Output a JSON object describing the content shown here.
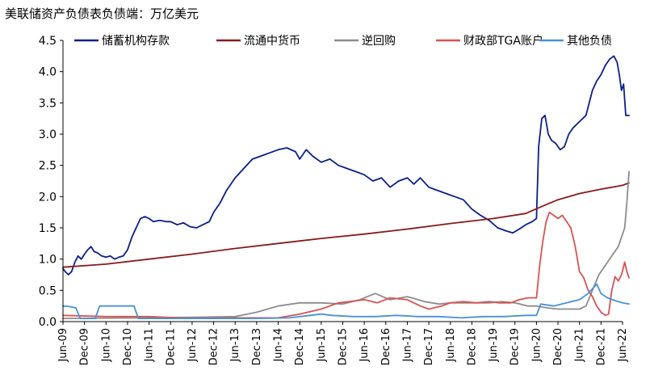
{
  "chart_data": {
    "type": "line",
    "title": "美联储资产负债表负债端：万亿美元",
    "xlabel": "",
    "ylabel": "",
    "ylim": [
      0,
      4.5
    ],
    "yticks": [
      "0.0",
      "0.5",
      "1.0",
      "1.5",
      "2.0",
      "2.5",
      "3.0",
      "3.5",
      "4.0",
      "4.5"
    ],
    "xticks": [
      "Jun-09",
      "Dec-09",
      "Jun-10",
      "Dec-10",
      "Jun-11",
      "Dec-11",
      "Jun-12",
      "Dec-12",
      "Jun-13",
      "Dec-13",
      "Jun-14",
      "Dec-14",
      "Jun-15",
      "Dec-15",
      "Jun-16",
      "Dec-16",
      "Jun-17",
      "Dec-17",
      "Jun-18",
      "Dec-18",
      "Jun-19",
      "Dec-19",
      "Jun-20",
      "Dec-20",
      "Jun-21",
      "Dec-21",
      "Jun-22"
    ],
    "xlim": [
      0,
      26
    ],
    "legend_position": "top",
    "grid": false,
    "series": [
      {
        "name": "储蓄机构存款",
        "color": "#0a1f8a",
        "points": [
          [
            0,
            0.85
          ],
          [
            0.1,
            0.8
          ],
          [
            0.25,
            0.75
          ],
          [
            0.4,
            0.8
          ],
          [
            0.55,
            0.95
          ],
          [
            0.7,
            1.05
          ],
          [
            0.85,
            1.0
          ],
          [
            1.0,
            1.08
          ],
          [
            1.15,
            1.15
          ],
          [
            1.3,
            1.2
          ],
          [
            1.45,
            1.12
          ],
          [
            1.6,
            1.1
          ],
          [
            1.8,
            1.05
          ],
          [
            2.0,
            1.03
          ],
          [
            2.2,
            1.05
          ],
          [
            2.4,
            1.0
          ],
          [
            2.6,
            1.03
          ],
          [
            2.8,
            1.05
          ],
          [
            3.0,
            1.15
          ],
          [
            3.2,
            1.35
          ],
          [
            3.4,
            1.5
          ],
          [
            3.6,
            1.65
          ],
          [
            3.8,
            1.68
          ],
          [
            4.0,
            1.65
          ],
          [
            4.2,
            1.6
          ],
          [
            4.5,
            1.62
          ],
          [
            4.8,
            1.6
          ],
          [
            5.0,
            1.6
          ],
          [
            5.3,
            1.55
          ],
          [
            5.6,
            1.58
          ],
          [
            5.9,
            1.52
          ],
          [
            6.2,
            1.5
          ],
          [
            6.5,
            1.55
          ],
          [
            6.8,
            1.6
          ],
          [
            7.0,
            1.75
          ],
          [
            7.3,
            1.9
          ],
          [
            7.6,
            2.1
          ],
          [
            8.0,
            2.3
          ],
          [
            8.4,
            2.45
          ],
          [
            8.8,
            2.6
          ],
          [
            9.2,
            2.65
          ],
          [
            9.6,
            2.7
          ],
          [
            10.0,
            2.75
          ],
          [
            10.4,
            2.78
          ],
          [
            10.8,
            2.72
          ],
          [
            11.0,
            2.6
          ],
          [
            11.3,
            2.75
          ],
          [
            11.6,
            2.65
          ],
          [
            12.0,
            2.55
          ],
          [
            12.4,
            2.6
          ],
          [
            12.8,
            2.5
          ],
          [
            13.2,
            2.45
          ],
          [
            13.6,
            2.4
          ],
          [
            14.0,
            2.35
          ],
          [
            14.4,
            2.25
          ],
          [
            14.8,
            2.3
          ],
          [
            15.2,
            2.15
          ],
          [
            15.6,
            2.25
          ],
          [
            16.0,
            2.3
          ],
          [
            16.3,
            2.2
          ],
          [
            16.6,
            2.3
          ],
          [
            17.0,
            2.15
          ],
          [
            17.4,
            2.1
          ],
          [
            17.8,
            2.05
          ],
          [
            18.2,
            2.0
          ],
          [
            18.6,
            1.95
          ],
          [
            19.0,
            1.8
          ],
          [
            19.4,
            1.7
          ],
          [
            19.8,
            1.62
          ],
          [
            20.2,
            1.5
          ],
          [
            20.6,
            1.45
          ],
          [
            20.9,
            1.42
          ],
          [
            21.2,
            1.48
          ],
          [
            21.5,
            1.55
          ],
          [
            21.8,
            1.6
          ],
          [
            22.0,
            1.65
          ],
          [
            22.1,
            2.8
          ],
          [
            22.25,
            3.25
          ],
          [
            22.4,
            3.3
          ],
          [
            22.55,
            3.0
          ],
          [
            22.7,
            2.9
          ],
          [
            22.9,
            2.85
          ],
          [
            23.1,
            2.75
          ],
          [
            23.3,
            2.8
          ],
          [
            23.5,
            3.0
          ],
          [
            23.7,
            3.1
          ],
          [
            24.0,
            3.2
          ],
          [
            24.3,
            3.3
          ],
          [
            24.6,
            3.7
          ],
          [
            24.8,
            3.85
          ],
          [
            25.0,
            3.95
          ],
          [
            25.2,
            4.1
          ],
          [
            25.4,
            4.2
          ],
          [
            25.6,
            4.25
          ],
          [
            25.75,
            4.15
          ],
          [
            25.85,
            3.95
          ],
          [
            25.95,
            3.7
          ],
          [
            26.05,
            3.8
          ],
          [
            26.15,
            3.3
          ],
          [
            26.3,
            3.3
          ]
        ]
      },
      {
        "name": "流通中货币",
        "color": "#8b1a1a",
        "points": [
          [
            0,
            0.87
          ],
          [
            2,
            0.92
          ],
          [
            4,
            1.0
          ],
          [
            6,
            1.08
          ],
          [
            8,
            1.17
          ],
          [
            10,
            1.25
          ],
          [
            12,
            1.33
          ],
          [
            14,
            1.4
          ],
          [
            16,
            1.48
          ],
          [
            18,
            1.57
          ],
          [
            20,
            1.65
          ],
          [
            21.5,
            1.73
          ],
          [
            22.3,
            1.85
          ],
          [
            23,
            1.95
          ],
          [
            24,
            2.05
          ],
          [
            25,
            2.12
          ],
          [
            26,
            2.18
          ],
          [
            26.3,
            2.22
          ]
        ]
      },
      {
        "name": "逆回购",
        "color": "#8c8c8c",
        "points": [
          [
            0,
            0.05
          ],
          [
            4,
            0.06
          ],
          [
            8,
            0.08
          ],
          [
            9.0,
            0.15
          ],
          [
            10.0,
            0.25
          ],
          [
            11.0,
            0.3
          ],
          [
            12.0,
            0.3
          ],
          [
            13.0,
            0.28
          ],
          [
            13.8,
            0.35
          ],
          [
            14.5,
            0.45
          ],
          [
            15.2,
            0.35
          ],
          [
            16.0,
            0.4
          ],
          [
            16.8,
            0.32
          ],
          [
            17.5,
            0.28
          ],
          [
            18.0,
            0.3
          ],
          [
            18.6,
            0.3
          ],
          [
            19.2,
            0.3
          ],
          [
            19.8,
            0.3
          ],
          [
            20.4,
            0.32
          ],
          [
            21.0,
            0.3
          ],
          [
            21.6,
            0.25
          ],
          [
            22.0,
            0.25
          ],
          [
            22.5,
            0.22
          ],
          [
            23.0,
            0.2
          ],
          [
            23.5,
            0.2
          ],
          [
            24.0,
            0.2
          ],
          [
            24.3,
            0.25
          ],
          [
            24.6,
            0.5
          ],
          [
            24.9,
            0.75
          ],
          [
            25.2,
            0.9
          ],
          [
            25.5,
            1.05
          ],
          [
            25.8,
            1.2
          ],
          [
            26.1,
            1.5
          ],
          [
            26.2,
            1.9
          ],
          [
            26.3,
            2.4
          ]
        ]
      },
      {
        "name": "财政部TGA账户",
        "color": "#d9534f",
        "points": [
          [
            0,
            0.1
          ],
          [
            2,
            0.08
          ],
          [
            4,
            0.08
          ],
          [
            6,
            0.05
          ],
          [
            8,
            0.06
          ],
          [
            9,
            0.06
          ],
          [
            10,
            0.06
          ],
          [
            11,
            0.12
          ],
          [
            12,
            0.2
          ],
          [
            12.8,
            0.3
          ],
          [
            13.3,
            0.32
          ],
          [
            14,
            0.35
          ],
          [
            14.6,
            0.3
          ],
          [
            15.2,
            0.38
          ],
          [
            16,
            0.35
          ],
          [
            16.6,
            0.25
          ],
          [
            17,
            0.2
          ],
          [
            17.6,
            0.25
          ],
          [
            18,
            0.3
          ],
          [
            18.6,
            0.32
          ],
          [
            19.2,
            0.3
          ],
          [
            19.8,
            0.32
          ],
          [
            20.3,
            0.3
          ],
          [
            20.8,
            0.3
          ],
          [
            21.2,
            0.35
          ],
          [
            21.6,
            0.38
          ],
          [
            22.0,
            0.38
          ],
          [
            22.15,
            0.9
          ],
          [
            22.3,
            1.3
          ],
          [
            22.45,
            1.6
          ],
          [
            22.6,
            1.75
          ],
          [
            22.8,
            1.7
          ],
          [
            23.0,
            1.65
          ],
          [
            23.2,
            1.7
          ],
          [
            23.4,
            1.6
          ],
          [
            23.6,
            1.5
          ],
          [
            23.8,
            1.2
          ],
          [
            24.0,
            0.8
          ],
          [
            24.2,
            0.7
          ],
          [
            24.4,
            0.5
          ],
          [
            24.6,
            0.4
          ],
          [
            24.8,
            0.25
          ],
          [
            25.0,
            0.15
          ],
          [
            25.2,
            0.1
          ],
          [
            25.35,
            0.12
          ],
          [
            25.5,
            0.5
          ],
          [
            25.65,
            0.72
          ],
          [
            25.8,
            0.65
          ],
          [
            25.95,
            0.75
          ],
          [
            26.1,
            0.95
          ],
          [
            26.2,
            0.8
          ],
          [
            26.3,
            0.7
          ]
        ]
      },
      {
        "name": "其他负债",
        "color": "#4a90d9",
        "points": [
          [
            0,
            0.25
          ],
          [
            0.3,
            0.24
          ],
          [
            0.6,
            0.22
          ],
          [
            0.8,
            0.05
          ],
          [
            1.5,
            0.05
          ],
          [
            1.7,
            0.25
          ],
          [
            2.5,
            0.25
          ],
          [
            3.3,
            0.25
          ],
          [
            3.5,
            0.05
          ],
          [
            5,
            0.05
          ],
          [
            7,
            0.05
          ],
          [
            9,
            0.05
          ],
          [
            10.5,
            0.06
          ],
          [
            11.5,
            0.1
          ],
          [
            12,
            0.12
          ],
          [
            12.5,
            0.1
          ],
          [
            13.5,
            0.08
          ],
          [
            14.5,
            0.08
          ],
          [
            15.5,
            0.1
          ],
          [
            16.5,
            0.08
          ],
          [
            17.5,
            0.08
          ],
          [
            18.5,
            0.06
          ],
          [
            19.5,
            0.08
          ],
          [
            20.5,
            0.08
          ],
          [
            21.5,
            0.1
          ],
          [
            22.0,
            0.1
          ],
          [
            22.2,
            0.28
          ],
          [
            22.8,
            0.25
          ],
          [
            23.4,
            0.3
          ],
          [
            24.0,
            0.35
          ],
          [
            24.4,
            0.45
          ],
          [
            24.8,
            0.6
          ],
          [
            25.0,
            0.45
          ],
          [
            25.3,
            0.38
          ],
          [
            25.7,
            0.33
          ],
          [
            26.0,
            0.3
          ],
          [
            26.3,
            0.28
          ]
        ]
      }
    ]
  }
}
